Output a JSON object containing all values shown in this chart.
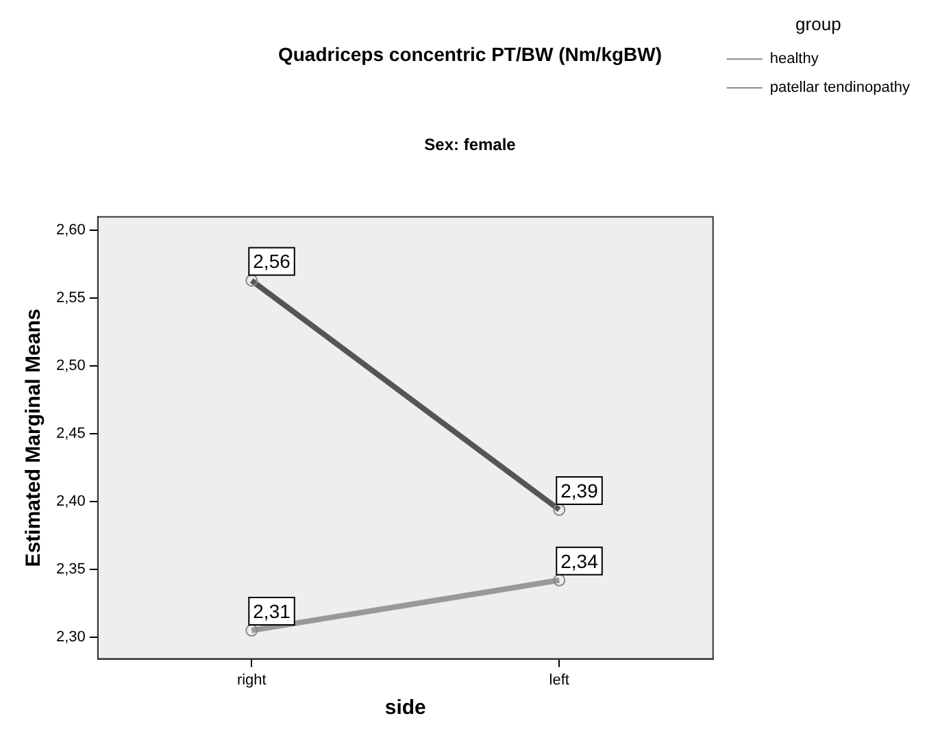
{
  "chart_data": {
    "type": "line",
    "title": "Quadriceps concentric PT/BW (Nm/kgBW)",
    "subtitle": "Sex: female",
    "xlabel": "side",
    "ylabel": "Estimated Marginal Means",
    "legend_title": "group",
    "categories": [
      "right",
      "left"
    ],
    "series": [
      {
        "name": "healthy",
        "color": "#555555",
        "values": [
          2.563,
          2.394
        ],
        "value_labels": [
          "2,56",
          "2,39"
        ]
      },
      {
        "name": "patellar tendinopathy",
        "color": "#999999",
        "values": [
          2.305,
          2.342
        ],
        "value_labels": [
          "2,31",
          "2,34"
        ]
      }
    ],
    "ylim": [
      2.284,
      2.61
    ],
    "yticks": [
      {
        "value": 2.3,
        "label": "2,30"
      },
      {
        "value": 2.35,
        "label": "2,35"
      },
      {
        "value": 2.4,
        "label": "2,40"
      },
      {
        "value": 2.45,
        "label": "2,45"
      },
      {
        "value": 2.5,
        "label": "2,50"
      },
      {
        "value": 2.55,
        "label": "2,55"
      },
      {
        "value": 2.6,
        "label": "2,60"
      }
    ],
    "grid": false,
    "legend": "right",
    "marker": "circle",
    "line_style": "solid"
  }
}
